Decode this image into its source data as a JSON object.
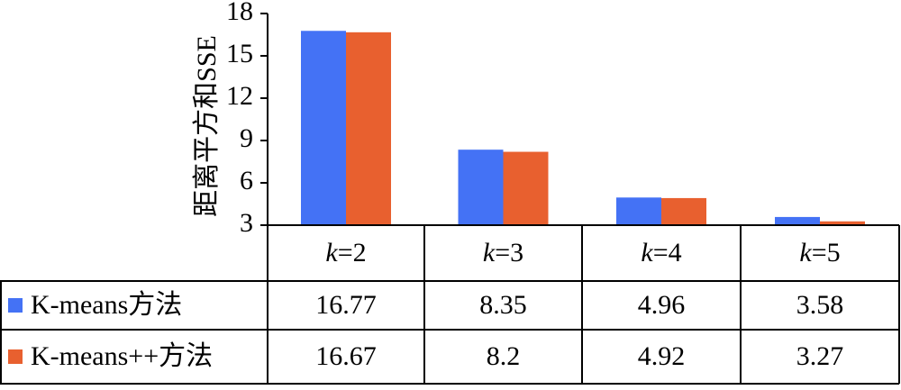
{
  "chart_data": {
    "type": "bar",
    "title": "",
    "xlabel": "",
    "ylabel": "距离平方和SSE",
    "ylim": [
      3,
      18
    ],
    "yticks": [
      3,
      6,
      9,
      12,
      15,
      18
    ],
    "categories": [
      {
        "var": "k",
        "rest": "=2"
      },
      {
        "var": "k",
        "rest": "=3"
      },
      {
        "var": "k",
        "rest": "=4"
      },
      {
        "var": "k",
        "rest": "=5"
      }
    ],
    "series": [
      {
        "name": "K-means方法",
        "color": "#4472F5",
        "values": [
          16.77,
          8.35,
          4.96,
          3.58
        ],
        "labels": [
          "16.77",
          "8.35",
          "4.96",
          "3.58"
        ]
      },
      {
        "name": "K-means++方法",
        "color": "#E8602F",
        "values": [
          16.67,
          8.2,
          4.92,
          3.27
        ],
        "labels": [
          "16.67",
          "8.2",
          "4.92",
          "3.27"
        ]
      }
    ],
    "legend": "data-table",
    "grid": false
  }
}
